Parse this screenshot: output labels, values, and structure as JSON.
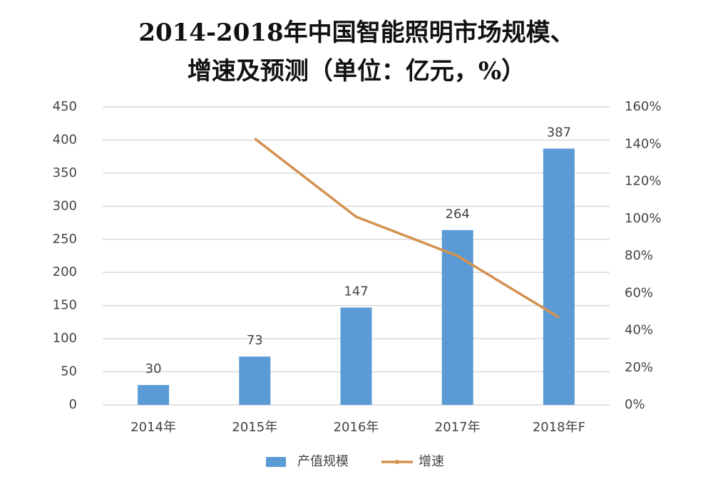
{
  "chart_data": {
    "type": "bar-line",
    "title": [
      "2014-2018年中国智能照明市场规模、",
      "增速及预测（单位：亿元，%）"
    ],
    "categories": [
      "2014年",
      "2015年",
      "2016年",
      "2017年",
      "2018年F"
    ],
    "series": [
      {
        "name": "产值规模",
        "color": "#5b9bd5",
        "values": [
          30,
          73,
          147,
          264,
          387
        ]
      },
      {
        "name": "增速",
        "color": "#d4914f",
        "axis": "y2",
        "values": [
          null,
          143,
          101,
          80,
          47
        ]
      }
    ],
    "ylim": [
      0,
      450
    ],
    "yticks": [
      0,
      50,
      100,
      150,
      200,
      250,
      300,
      350,
      400,
      450
    ],
    "y2lim": [
      0,
      160
    ],
    "y2ticks": [
      {
        "value": 0,
        "label": "0%"
      },
      {
        "value": 20,
        "label": "20%"
      },
      {
        "value": 40,
        "label": "40%"
      },
      {
        "value": 60,
        "label": "60%"
      },
      {
        "value": 80,
        "label": "80%"
      },
      {
        "value": 100,
        "label": "100%"
      },
      {
        "value": 120,
        "label": "120%"
      },
      {
        "value": 140,
        "label": "140%"
      },
      {
        "value": 160,
        "label": "160%"
      }
    ],
    "grid": true,
    "legend": "bottom"
  }
}
